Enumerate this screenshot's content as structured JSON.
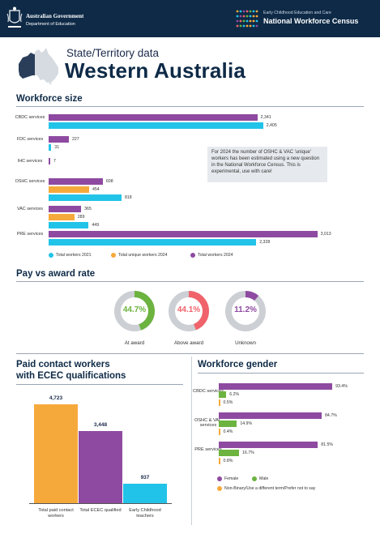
{
  "header": {
    "gov_line1": "Australian Government",
    "gov_line2": "Department of Education",
    "census_line1": "Early Childhood Education and Care",
    "census_line2": "National Workforce Census"
  },
  "title": {
    "subtitle": "State/Territory data",
    "state": "Western Australia"
  },
  "colors": {
    "navy": "#0e2a47",
    "purple": "#8e4aa0",
    "cyan": "#22c3e8",
    "orange": "#f6a93b",
    "green": "#6cb33f",
    "red": "#f0636b",
    "grey": "#cccfd3"
  },
  "workforce_size": {
    "title": "Workforce size",
    "note": "For 2024 the number of OSHC & VAC 'unique' workers has been estimated using a new question in the National Workforce Census. This is experimental, use with care!",
    "legend": [
      "Total workers 2021",
      "Total unique workers 2024",
      "Total workers 2024"
    ]
  },
  "pay": {
    "title": "Pay vs award rate",
    "items": [
      {
        "pct": "44.7%",
        "label": "At award",
        "value": 44.7,
        "color": "#6cb33f",
        "text_color": "#6cb33f"
      },
      {
        "pct": "44.1%",
        "label": "Above award",
        "value": 44.1,
        "color": "#f0636b",
        "text_color": "#f0636b"
      },
      {
        "pct": "11.2%",
        "label": "Unknown",
        "value": 11.2,
        "color": "#8e4aa0",
        "text_color": "#8e4aa0"
      }
    ]
  },
  "qualifications": {
    "title_line1": "Paid contact workers",
    "title_line2": "with ECEC qualifications"
  },
  "gender": {
    "title": "Workforce gender",
    "legend": [
      "Female",
      "Male",
      "Non-Binary/Use a different term/Prefer not to say"
    ]
  },
  "chart_data": [
    {
      "type": "bar",
      "title": "Workforce size",
      "categories": [
        "CBDC services",
        "FDC services",
        "IHC services",
        "OSHC services",
        "VAC services",
        "PRE services"
      ],
      "series": [
        {
          "name": "Total workers 2024",
          "color": "#8e4aa0",
          "values": [
            2341,
            227,
            7,
            608,
            365,
            3013
          ],
          "labels": [
            "2,341",
            "227",
            "7",
            "608",
            "365",
            "3,013"
          ]
        },
        {
          "name": "Total unique workers 2024",
          "color": "#f6a93b",
          "values": [
            null,
            null,
            null,
            454,
            289,
            null
          ],
          "labels": [
            "",
            "",
            "",
            "454",
            "289",
            ""
          ]
        },
        {
          "name": "Total workers 2021",
          "color": "#22c3e8",
          "values": [
            2405,
            31,
            null,
            818,
            449,
            2328
          ],
          "labels": [
            "2,405",
            "31",
            "",
            "818",
            "449",
            "2,328"
          ]
        }
      ],
      "xlim": [
        0,
        3200
      ]
    },
    {
      "type": "bar",
      "title": "Paid contact workers with ECEC qualifications",
      "categories": [
        "Total paid contact workers",
        "Total ECEC qualified",
        "Early Childhood teachers"
      ],
      "values": [
        4723,
        3448,
        937
      ],
      "labels": [
        "4,723",
        "3,448",
        "937"
      ],
      "colors": [
        "#f6a93b",
        "#8e4aa0",
        "#22c3e8"
      ],
      "ylim": [
        0,
        4723
      ]
    },
    {
      "type": "bar",
      "title": "Workforce gender",
      "categories": [
        "CBDC services",
        "OSHC & VAC services",
        "PRE services"
      ],
      "series": [
        {
          "name": "Female",
          "color": "#8e4aa0",
          "values": [
            93.4,
            84.7,
            81.5
          ],
          "labels": [
            "93.4%",
            "84.7%",
            "81.5%"
          ]
        },
        {
          "name": "Male",
          "color": "#6cb33f",
          "values": [
            6.2,
            14.9,
            16.7
          ],
          "labels": [
            "6.2%",
            "14.9%",
            "16.7%"
          ]
        },
        {
          "name": "Non-Binary/Use a different term/Prefer not to say",
          "color": "#f6a93b",
          "values": [
            0.5,
            0.4,
            0.8
          ],
          "labels": [
            "0.5%",
            "0.4%",
            "0.8%"
          ]
        }
      ],
      "xlim": [
        0,
        100
      ]
    }
  ]
}
